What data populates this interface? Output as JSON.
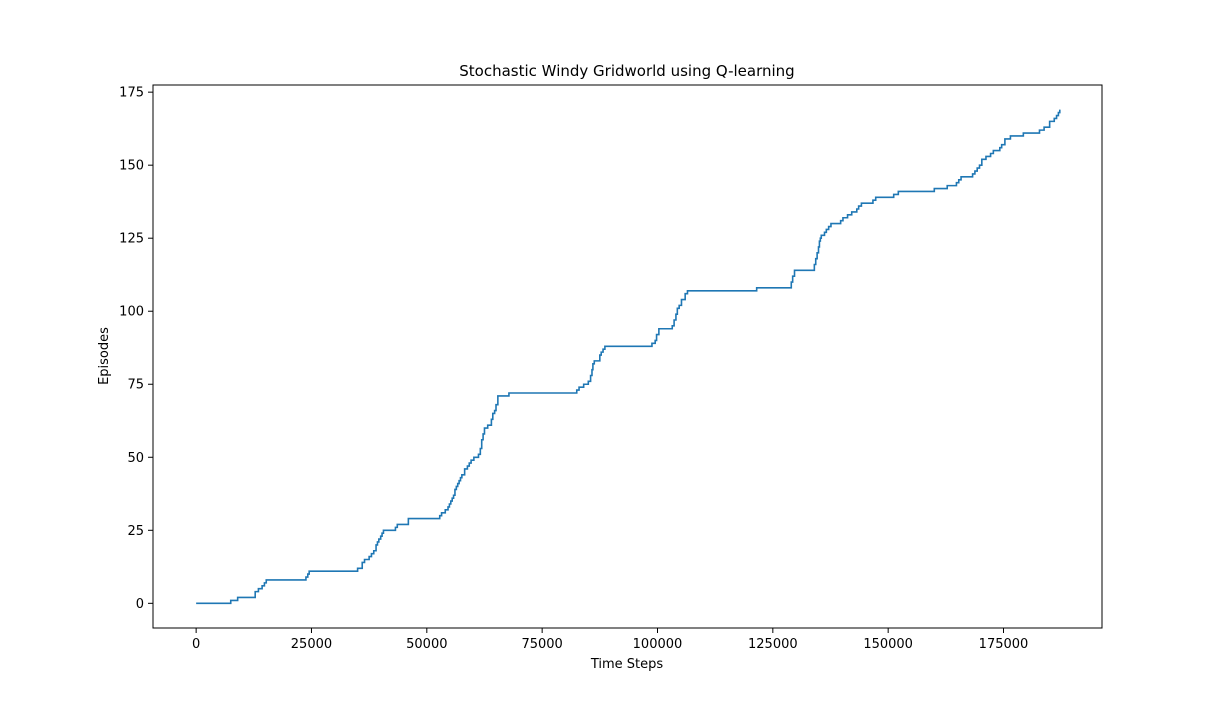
{
  "chart_data": {
    "type": "line",
    "title": "Stochastic Windy Gridworld using Q-learning",
    "xlabel": "Time Steps",
    "ylabel": "Episodes",
    "xlim": [
      -9350,
      196350
    ],
    "ylim": [
      -8.45,
      177.45
    ],
    "xticks": [
      0,
      25000,
      50000,
      75000,
      100000,
      125000,
      150000,
      175000
    ],
    "xtick_labels": [
      "0",
      "25000",
      "50000",
      "75000",
      "100000",
      "125000",
      "150000",
      "175000"
    ],
    "yticks": [
      0,
      25,
      50,
      75,
      100,
      125,
      150,
      175
    ],
    "ytick_labels": [
      "0",
      "25",
      "50",
      "75",
      "100",
      "125",
      "150",
      "175"
    ],
    "grid": false,
    "series": [
      {
        "color": "#1f77b4",
        "step": "post",
        "x": [
          0,
          7500,
          9000,
          10000,
          12800,
          13500,
          14300,
          14800,
          15200,
          15700,
          23800,
          24200,
          24500,
          35000,
          36000,
          36500,
          37500,
          38000,
          38500,
          39000,
          39300,
          39600,
          40000,
          40300,
          40600,
          41200,
          43200,
          43600,
          46000,
          52800,
          53200,
          54000,
          54600,
          54900,
          55200,
          55500,
          55800,
          56100,
          56400,
          56700,
          57000,
          57300,
          57600,
          58200,
          58800,
          59200,
          59600,
          60200,
          61200,
          61600,
          61900,
          62200,
          62500,
          63200,
          64000,
          64300,
          64700,
          65000,
          65400,
          67800,
          82500,
          83000,
          84000,
          85000,
          85500,
          85800,
          86000,
          86300,
          87500,
          87800,
          88200,
          88600,
          89000,
          98800,
          99500,
          99800,
          100300,
          103200,
          103600,
          104000,
          104300,
          104700,
          105200,
          106000,
          106500,
          106800,
          107200,
          121500,
          129000,
          129300,
          129700,
          134000,
          134300,
          134600,
          134900,
          135100,
          135300,
          135500,
          136200,
          136600,
          137100,
          137600,
          139700,
          140200,
          141200,
          142100,
          143200,
          143600,
          144200,
          146200,
          146700,
          147300,
          148500,
          151200,
          152200,
          160000,
          162800,
          164800,
          165300,
          165800,
          168300,
          168800,
          169300,
          169800,
          170300,
          171200,
          172200,
          172800,
          174200,
          174600,
          175300,
          176500,
          179300,
          182800,
          183800,
          185000,
          186000,
          186500,
          186900,
          187200
        ],
        "y": [
          0,
          1,
          2,
          2,
          4,
          5,
          6,
          7,
          8,
          8,
          9,
          10,
          11,
          12,
          14,
          15,
          16,
          17,
          18,
          20,
          21,
          22,
          23,
          24,
          25,
          25,
          26,
          27,
          29,
          30,
          31,
          32,
          33,
          34,
          35,
          36,
          37,
          39,
          40,
          41,
          42,
          43,
          44,
          46,
          47,
          48,
          49,
          50,
          51,
          53,
          56,
          58,
          60,
          61,
          63,
          65,
          66,
          68,
          71,
          72,
          73,
          74,
          75,
          76,
          78,
          80,
          82,
          83,
          85,
          86,
          87,
          88,
          88,
          89,
          90,
          92,
          94,
          95,
          97,
          99,
          101,
          102,
          104,
          106,
          107,
          107,
          107,
          108,
          110,
          112,
          114,
          116,
          118,
          120,
          122,
          124,
          125,
          126,
          127,
          128,
          129,
          130,
          131,
          132,
          133,
          134,
          135,
          136,
          137,
          137,
          138,
          139,
          139,
          140,
          141,
          142,
          143,
          144,
          145,
          146,
          147,
          148,
          149,
          150,
          152,
          153,
          154,
          155,
          156,
          157,
          159,
          160,
          161,
          162,
          163,
          165,
          166,
          167,
          168,
          169
        ]
      }
    ]
  }
}
